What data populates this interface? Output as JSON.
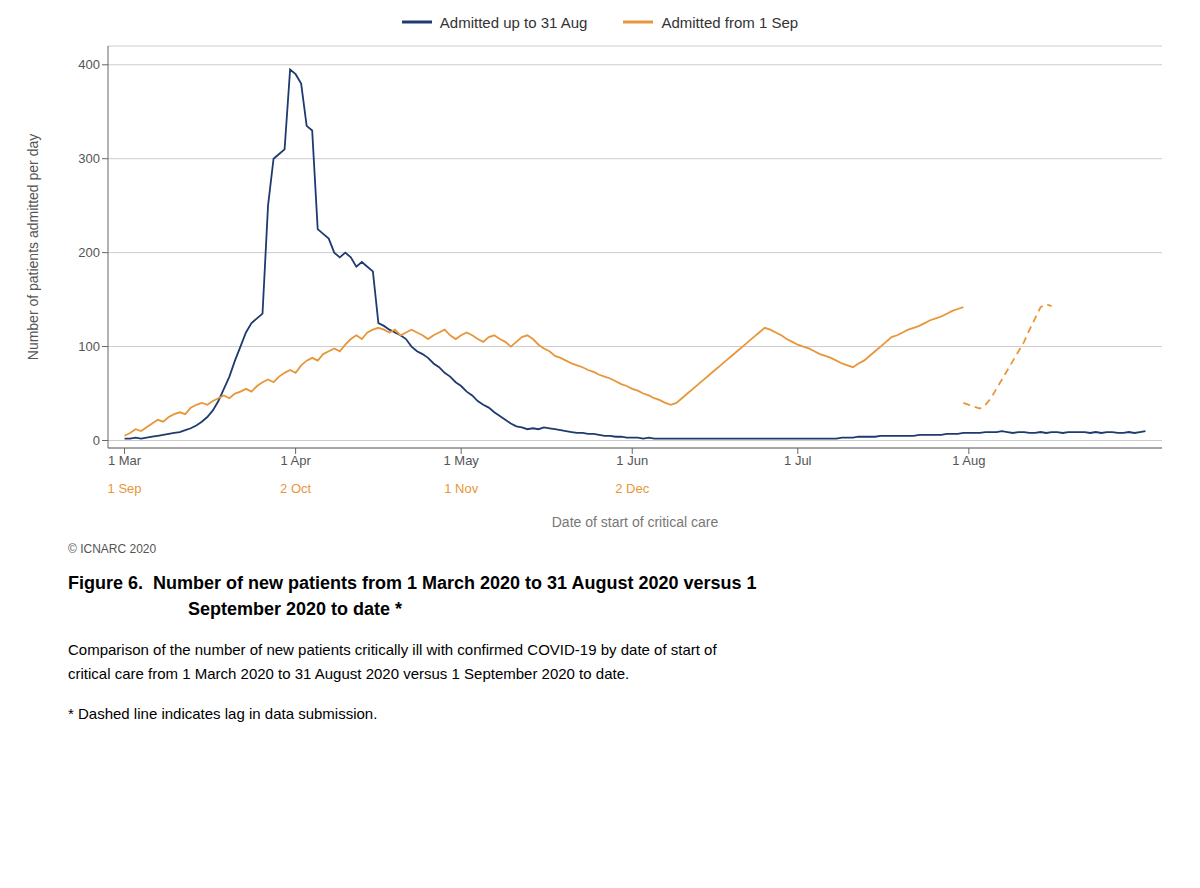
{
  "chart_data": {
    "type": "line",
    "title": [
      "Figure 6.  Number of new patients from 1 March 2020 to 31 August 2020 versus 1",
      "September 2020 to date *"
    ],
    "caption": [
      "Comparison of the number of new patients critically ill with confirmed COVID-19 by date of start of",
      "critical care from 1 March 2020 to 31 August 2020 versus 1 September 2020 to date."
    ],
    "footnote": "* Dashed line indicates lag in data submission.",
    "copyright": "© ICNARC 2020",
    "xlabel": "Date of start of critical care",
    "ylabel": "Number of patients admitted per day",
    "xlim": [
      -3,
      188
    ],
    "xticks": [
      {
        "value": 0,
        "label": "1 Mar"
      },
      {
        "value": 31,
        "label": "1 Apr"
      },
      {
        "value": 61,
        "label": "1 May"
      },
      {
        "value": 92,
        "label": "1 Jun"
      },
      {
        "value": 122,
        "label": "1 Jul"
      },
      {
        "value": 153,
        "label": "1 Aug"
      }
    ],
    "x2ticks": [
      {
        "value": 0,
        "label": "1 Sep"
      },
      {
        "value": 31,
        "label": "2 Oct"
      },
      {
        "value": 61,
        "label": "1 Nov"
      },
      {
        "value": 92,
        "label": "2 Dec"
      }
    ],
    "ylim": [
      -8,
      420
    ],
    "yticks": [
      0,
      100,
      200,
      300,
      400
    ],
    "grid": true,
    "legend": "top",
    "series": [
      {
        "name": "Admitted up to 31 Aug",
        "color": "#1e3a6e",
        "line_style": "solid",
        "x": [
          0,
          1,
          2,
          3,
          4,
          5,
          6,
          7,
          8,
          9,
          10,
          11,
          12,
          13,
          14,
          15,
          16,
          17,
          18,
          19,
          20,
          21,
          22,
          23,
          24,
          25,
          26,
          27,
          28,
          29,
          30,
          31,
          32,
          33,
          34,
          35,
          36,
          37,
          38,
          39,
          40,
          41,
          42,
          43,
          44,
          45,
          46,
          47,
          48,
          49,
          50,
          51,
          52,
          53,
          54,
          55,
          56,
          57,
          58,
          59,
          60,
          61,
          62,
          63,
          64,
          65,
          66,
          67,
          68,
          69,
          70,
          71,
          72,
          73,
          74,
          75,
          76,
          77,
          78,
          79,
          80,
          81,
          82,
          83,
          84,
          85,
          86,
          87,
          88,
          89,
          90,
          91,
          92,
          93,
          94,
          95,
          96,
          97,
          98,
          99,
          100,
          101,
          102,
          103,
          104,
          105,
          106,
          107,
          108,
          109,
          110,
          111,
          112,
          113,
          114,
          115,
          116,
          117,
          118,
          119,
          120,
          121,
          122,
          123,
          124,
          125,
          126,
          127,
          128,
          129,
          130,
          131,
          132,
          133,
          134,
          135,
          136,
          137,
          138,
          139,
          140,
          141,
          142,
          143,
          144,
          145,
          146,
          147,
          148,
          149,
          150,
          151,
          152,
          153,
          154,
          155,
          156,
          157,
          158,
          159,
          160,
          161,
          162,
          163,
          164,
          165,
          166,
          167,
          168,
          169,
          170,
          171,
          172,
          173,
          174,
          175,
          176,
          177,
          178,
          179,
          180,
          181,
          182,
          183,
          184,
          185
        ],
        "values": [
          2,
          2,
          3,
          2,
          3,
          4,
          5,
          6,
          7,
          8,
          9,
          11,
          13,
          16,
          20,
          25,
          32,
          42,
          55,
          68,
          85,
          100,
          115,
          125,
          130,
          135,
          250,
          300,
          305,
          310,
          395,
          390,
          380,
          335,
          330,
          225,
          220,
          215,
          200,
          195,
          200,
          195,
          185,
          190,
          185,
          180,
          125,
          122,
          118,
          115,
          112,
          108,
          100,
          95,
          92,
          88,
          82,
          78,
          72,
          68,
          62,
          58,
          52,
          48,
          42,
          38,
          35,
          30,
          26,
          22,
          18,
          15,
          14,
          12,
          13,
          12,
          14,
          13,
          12,
          11,
          10,
          9,
          8,
          8,
          7,
          7,
          6,
          5,
          5,
          4,
          4,
          3,
          3,
          3,
          2,
          3,
          2,
          2,
          2,
          2,
          2,
          2,
          2,
          2,
          2,
          2,
          2,
          2,
          2,
          2,
          2,
          2,
          2,
          2,
          2,
          2,
          2,
          2,
          2,
          2,
          2,
          2,
          2,
          2,
          2,
          2,
          2,
          2,
          2,
          2,
          3,
          3,
          3,
          4,
          4,
          4,
          4,
          5,
          5,
          5,
          5,
          5,
          5,
          5,
          6,
          6,
          6,
          6,
          6,
          7,
          7,
          7,
          8,
          8,
          8,
          8,
          9,
          9,
          9,
          10,
          9,
          8,
          9,
          9,
          8,
          8,
          9,
          8,
          9,
          9,
          8,
          9,
          9,
          9,
          9,
          8,
          9,
          8,
          9,
          9,
          8,
          8,
          9,
          8,
          9,
          10
        ]
      },
      {
        "name": "Admitted from 1 Sep",
        "color": "#e8963a",
        "line_style": "solid",
        "axis": "x2",
        "x": [
          0,
          1,
          2,
          3,
          4,
          5,
          6,
          7,
          8,
          9,
          10,
          11,
          12,
          13,
          14,
          15,
          16,
          17,
          18,
          19,
          20,
          21,
          22,
          23,
          24,
          25,
          26,
          27,
          28,
          29,
          30,
          31,
          32,
          33,
          34,
          35,
          36,
          37,
          38,
          39,
          40,
          41,
          42,
          43,
          44,
          45,
          46,
          47,
          48,
          49,
          50,
          51,
          52,
          53,
          54,
          55,
          56,
          57,
          58,
          59,
          60,
          61,
          62,
          63,
          64,
          65,
          66,
          67,
          68,
          69,
          70,
          71,
          72,
          73,
          74,
          75,
          76,
          77,
          78,
          79,
          80,
          81,
          82,
          83,
          84,
          85,
          86,
          87,
          88,
          89,
          90,
          91,
          92,
          93,
          94,
          95,
          96,
          97,
          98,
          99,
          100,
          101,
          102,
          103,
          104,
          105,
          106,
          107,
          108,
          109,
          110,
          111,
          112,
          113,
          114,
          115,
          116,
          117,
          118,
          119,
          120,
          121,
          122,
          123,
          124,
          125,
          126,
          127,
          128,
          129,
          130,
          131,
          132,
          133,
          134,
          135,
          136,
          137,
          138,
          139,
          140,
          141,
          142,
          143,
          144,
          145,
          146,
          147,
          148,
          149,
          150,
          151,
          152
        ],
        "values": [
          5,
          8,
          12,
          10,
          14,
          18,
          22,
          20,
          25,
          28,
          30,
          28,
          35,
          38,
          40,
          38,
          42,
          45,
          48,
          45,
          50,
          52,
          55,
          52,
          58,
          62,
          65,
          62,
          68,
          72,
          75,
          72,
          80,
          85,
          88,
          85,
          92,
          95,
          98,
          95,
          102,
          108,
          112,
          108,
          115,
          118,
          120,
          118,
          115,
          118,
          112,
          115,
          118,
          115,
          112,
          108,
          112,
          115,
          118,
          112,
          108,
          112,
          115,
          112,
          108,
          105,
          110,
          112,
          108,
          105,
          100,
          105,
          110,
          112,
          108,
          102,
          98,
          95,
          90,
          88,
          85,
          82,
          80,
          78,
          75,
          73,
          70,
          68,
          66,
          63,
          60,
          58,
          55,
          53,
          50,
          48,
          45,
          43,
          40,
          38,
          40,
          45,
          50,
          55,
          60,
          65,
          70,
          75,
          80,
          85,
          90,
          95,
          100,
          105,
          110,
          115,
          120,
          118,
          115,
          112,
          108,
          105,
          102,
          100,
          98,
          95,
          92,
          90,
          88,
          85,
          82,
          80,
          78,
          82,
          85,
          90,
          95,
          100,
          105,
          110,
          112,
          115,
          118,
          120,
          122,
          125,
          128,
          130,
          132,
          135,
          138,
          140,
          142
        ]
      },
      {
        "name": "Admitted from 1 Sep",
        "color": "#e8963a",
        "line_style": "dashed",
        "axis": "x2",
        "x": [
          152,
          153,
          154,
          155,
          156,
          157,
          158,
          159,
          160,
          161,
          162,
          163,
          164,
          165,
          166,
          167,
          168
        ],
        "values": [
          40,
          38,
          36,
          34,
          38,
          45,
          55,
          65,
          75,
          85,
          95,
          105,
          118,
          130,
          142,
          145,
          143
        ]
      }
    ]
  }
}
